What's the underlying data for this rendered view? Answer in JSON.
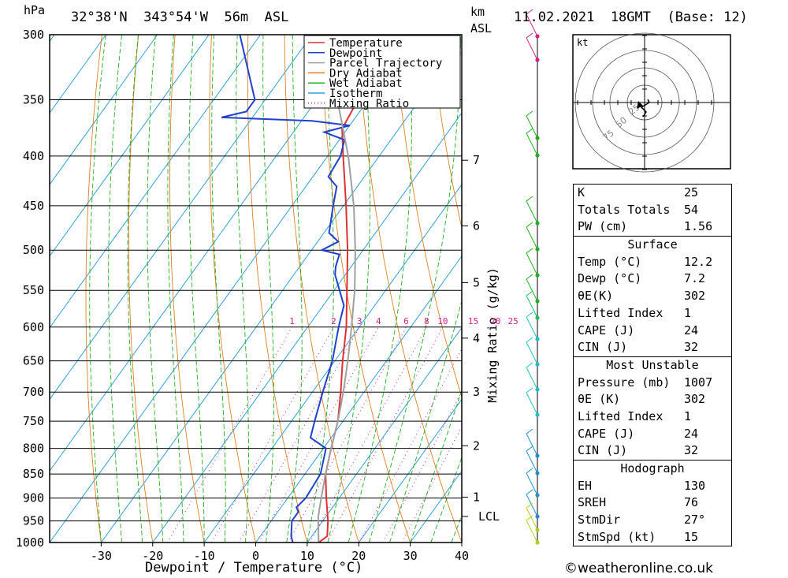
{
  "header": {
    "unit_left": "hPa",
    "location": "32°38'N  343°54'W  56m  ASL",
    "unit_km": "km",
    "unit_asl": "ASL",
    "datetime": "11.02.2021  18GMT  (Base: 12)"
  },
  "chart_data": {
    "type": "line",
    "title": "",
    "xlabel": "Dewpoint / Temperature (°C)",
    "ylabel": "hPa",
    "xlim": [
      -40,
      40
    ],
    "x_ticks": [
      -30,
      -20,
      -10,
      0,
      10,
      20,
      30,
      40
    ],
    "y_scale": "log",
    "pressure_levels": [
      300,
      350,
      400,
      450,
      500,
      550,
      600,
      650,
      700,
      750,
      800,
      850,
      900,
      950,
      1000
    ],
    "km_ticks": [
      {
        "label": "7",
        "p": 404
      },
      {
        "label": "6",
        "p": 472
      },
      {
        "label": "5",
        "p": 540
      },
      {
        "label": "4",
        "p": 616
      },
      {
        "label": "3",
        "p": 700
      },
      {
        "label": "2",
        "p": 795
      },
      {
        "label": "1",
        "p": 898
      },
      {
        "label": "LCL",
        "p": 940
      }
    ],
    "mixing_ratio_axis_label": "Mixing Ratio (g/kg)",
    "mixing_ratio_labels": [
      "1",
      "2",
      "3",
      "4",
      "6",
      "8",
      "10",
      "15",
      "20",
      "25"
    ],
    "mixing_ratio_values": [
      1,
      2,
      3,
      4,
      6,
      8,
      10,
      15,
      20,
      25
    ],
    "legend": [
      {
        "name": "Temperature",
        "color": "#e03030",
        "dash": "solid"
      },
      {
        "name": "Dewpoint",
        "color": "#2040d0",
        "dash": "solid"
      },
      {
        "name": "Parcel Trajectory",
        "color": "#a0a0a0",
        "dash": "solid"
      },
      {
        "name": "Dry Adiabat",
        "color": "#e08020",
        "dash": "solid"
      },
      {
        "name": "Wet Adiabat",
        "color": "#20b020",
        "dash": "solid"
      },
      {
        "name": "Isotherm",
        "color": "#30a0e0",
        "dash": "solid"
      },
      {
        "name": "Mixing Ratio",
        "color": "#d0208a",
        "dash": "dotted"
      }
    ],
    "series": [
      {
        "name": "Temperature",
        "color": "#e03030",
        "points": [
          [
            1000,
            12.2
          ],
          [
            985,
            13.0
          ],
          [
            950,
            11.0
          ],
          [
            900,
            7.5
          ],
          [
            850,
            4.0
          ],
          [
            800,
            1.5
          ],
          [
            750,
            -1.0
          ],
          [
            700,
            -4.5
          ],
          [
            650,
            -8.5
          ],
          [
            600,
            -12.5
          ],
          [
            550,
            -17.5
          ],
          [
            500,
            -23.0
          ],
          [
            450,
            -29.5
          ],
          [
            400,
            -37.0
          ],
          [
            375,
            -41.0
          ],
          [
            350,
            -42.0
          ],
          [
            300,
            -40.0
          ]
        ]
      },
      {
        "name": "Dewpoint",
        "color": "#2040d0",
        "points": [
          [
            1000,
            7.2
          ],
          [
            985,
            6.0
          ],
          [
            950,
            4.0
          ],
          [
            930,
            4.0
          ],
          [
            920,
            3.0
          ],
          [
            900,
            3.5
          ],
          [
            850,
            3.0
          ],
          [
            800,
            0.5
          ],
          [
            780,
            -4.0
          ],
          [
            750,
            -5.5
          ],
          [
            700,
            -8.0
          ],
          [
            650,
            -10.5
          ],
          [
            600,
            -14.0
          ],
          [
            570,
            -16.0
          ],
          [
            530,
            -22.0
          ],
          [
            520,
            -23.0
          ],
          [
            505,
            -24.0
          ],
          [
            500,
            -28.0
          ],
          [
            490,
            -26.0
          ],
          [
            480,
            -29.0
          ],
          [
            450,
            -32.0
          ],
          [
            430,
            -34.0
          ],
          [
            420,
            -37.0
          ],
          [
            400,
            -37.5
          ],
          [
            385,
            -39.0
          ],
          [
            378,
            -44.0
          ],
          [
            372,
            -40.0
          ],
          [
            368,
            -48.0
          ],
          [
            365,
            -66.0
          ],
          [
            360,
            -62.0
          ],
          [
            350,
            -62.0
          ],
          [
            300,
            -74.0
          ]
        ]
      },
      {
        "name": "Parcel Trajectory",
        "color": "#a0a0a0",
        "points": [
          [
            1000,
            12.2
          ],
          [
            940,
            8.5
          ],
          [
            900,
            6.5
          ],
          [
            850,
            4.0
          ],
          [
            800,
            1.5
          ],
          [
            750,
            -1.0
          ],
          [
            700,
            -4.0
          ],
          [
            650,
            -7.5
          ],
          [
            600,
            -11.5
          ],
          [
            550,
            -16.0
          ],
          [
            500,
            -21.5
          ],
          [
            450,
            -28.0
          ],
          [
            400,
            -36.0
          ],
          [
            350,
            -46.0
          ],
          [
            300,
            -57.0
          ]
        ]
      }
    ],
    "grid": true
  },
  "hodograph": {
    "unit": "kt",
    "ring_labels": [
      "25",
      "50",
      "75"
    ]
  },
  "indices": {
    "top": [
      {
        "label": "K",
        "value": "25"
      },
      {
        "label": "Totals Totals",
        "value": "54"
      },
      {
        "label": "PW (cm)",
        "value": "1.56"
      }
    ],
    "surface_title": "Surface",
    "surface": [
      {
        "label": "Temp (°C)",
        "value": "12.2"
      },
      {
        "label": "Dewp (°C)",
        "value": "7.2"
      },
      {
        "label": "θE(K)",
        "value": "302"
      },
      {
        "label": "Lifted Index",
        "value": "1"
      },
      {
        "label": "CAPE (J)",
        "value": "24"
      },
      {
        "label": "CIN (J)",
        "value": "32"
      }
    ],
    "mu_title": "Most Unstable",
    "mu": [
      {
        "label": "Pressure (mb)",
        "value": "1007"
      },
      {
        "label": "θE (K)",
        "value": "302"
      },
      {
        "label": "Lifted Index",
        "value": "1"
      },
      {
        "label": "CAPE (J)",
        "value": "24"
      },
      {
        "label": "CIN (J)",
        "value": "32"
      }
    ],
    "hodo_title": "Hodograph",
    "hodo": [
      {
        "label": "EH",
        "value": "130"
      },
      {
        "label": "SREH",
        "value": "76"
      },
      {
        "label": "StmDir",
        "value": "27°"
      },
      {
        "label": "StmSpd (kt)",
        "value": "15"
      }
    ]
  },
  "footer": "©weatheronline.co.uk"
}
